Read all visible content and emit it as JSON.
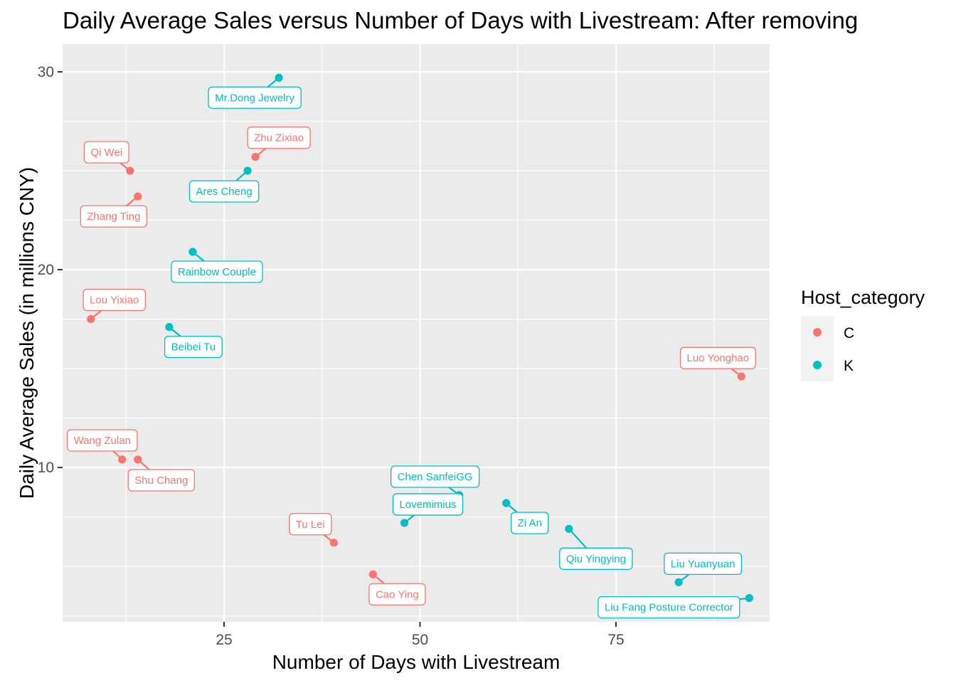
{
  "chart_data": {
    "type": "scatter",
    "title": "Daily Average Sales versus Number of Days with Livestream: After removing",
    "xlabel": "Number of Days with Livestream",
    "ylabel": "Daily Average Sales (in millions CNY)",
    "xlim": [
      4.4,
      94.6
    ],
    "ylim": [
      2.2,
      31.4
    ],
    "x_ticks": [
      25,
      50,
      75
    ],
    "y_ticks": [
      10,
      20,
      30
    ],
    "grid": true,
    "legend": {
      "title": "Host_category",
      "position": "right",
      "entries": [
        {
          "key": "C",
          "label": "C",
          "color": "#F8766D"
        },
        {
          "key": "K",
          "label": "K",
          "color": "#00BFC4"
        }
      ]
    },
    "points": [
      {
        "label": "Mr.Dong Jewelry",
        "category": "K",
        "x": 32,
        "y": 29.7
      },
      {
        "label": "Zhu Zixiao",
        "category": "C",
        "x": 29,
        "y": 25.7
      },
      {
        "label": "Qi Wei",
        "category": "C",
        "x": 13,
        "y": 25.0
      },
      {
        "label": "Ares Cheng",
        "category": "K",
        "x": 28,
        "y": 25.0
      },
      {
        "label": "Zhang Ting",
        "category": "C",
        "x": 14,
        "y": 23.7
      },
      {
        "label": "Rainbow Couple",
        "category": "K",
        "x": 21,
        "y": 20.9
      },
      {
        "label": "Lou Yixiao",
        "category": "C",
        "x": 8,
        "y": 17.5
      },
      {
        "label": "Beibei Tu",
        "category": "K",
        "x": 18,
        "y": 17.1
      },
      {
        "label": "Luo Yonghao",
        "category": "C",
        "x": 91,
        "y": 14.6
      },
      {
        "label": "Wang Zulan",
        "category": "C",
        "x": 12,
        "y": 10.4
      },
      {
        "label": "Shu Chang",
        "category": "C",
        "x": 14,
        "y": 10.4
      },
      {
        "label": "Chen SanfeiGG",
        "category": "K",
        "x": 55,
        "y": 8.6
      },
      {
        "label": "Zi An",
        "category": "K",
        "x": 61,
        "y": 8.2
      },
      {
        "label": "Lovemimius",
        "category": "K",
        "x": 48,
        "y": 7.2
      },
      {
        "label": "Qiu Yingying",
        "category": "K",
        "x": 69,
        "y": 6.9
      },
      {
        "label": "Tu Lei",
        "category": "C",
        "x": 39,
        "y": 6.2
      },
      {
        "label": "Liu Yuanyuan",
        "category": "K",
        "x": 83,
        "y": 4.2
      },
      {
        "label": "Cao Ying",
        "category": "C",
        "x": 44,
        "y": 4.6
      },
      {
        "label": "Liu Fang Posture Corrector",
        "category": "K",
        "x": 92,
        "y": 3.4
      }
    ]
  }
}
